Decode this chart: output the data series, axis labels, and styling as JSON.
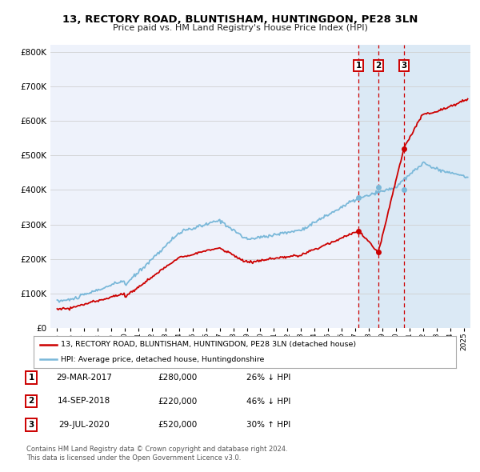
{
  "title": "13, RECTORY ROAD, BLUNTISHAM, HUNTINGDON, PE28 3LN",
  "subtitle": "Price paid vs. HM Land Registry's House Price Index (HPI)",
  "legend_house": "13, RECTORY ROAD, BLUNTISHAM, HUNTINGDON, PE28 3LN (detached house)",
  "legend_hpi": "HPI: Average price, detached house, Huntingdonshire",
  "footer1": "Contains HM Land Registry data © Crown copyright and database right 2024.",
  "footer2": "This data is licensed under the Open Government Licence v3.0.",
  "transactions": [
    {
      "num": 1,
      "date": "29-MAR-2017",
      "price": "£280,000",
      "pct": "26%",
      "dir": "↓",
      "year": 2017.25
    },
    {
      "num": 2,
      "date": "14-SEP-2018",
      "price": "£220,000",
      "pct": "46%",
      "dir": "↓",
      "year": 2018.71
    },
    {
      "num": 3,
      "date": "29-JUL-2020",
      "price": "£520,000",
      "pct": "30%",
      "dir": "↑",
      "year": 2020.58
    }
  ],
  "sale_prices": [
    280000,
    220000,
    520000
  ],
  "hpi_at_sale": [
    378378,
    407407,
    400000
  ],
  "hpi_color": "#7ab8d9",
  "price_color": "#cc0000",
  "bg_color": "#ffffff",
  "plot_bg": "#eef2fb",
  "grid_color": "#d0d0d0",
  "highlight_bg": "#d8e8f5",
  "ylim": [
    0,
    820000
  ],
  "yticks": [
    0,
    100000,
    200000,
    300000,
    400000,
    500000,
    600000,
    700000,
    800000
  ],
  "xlim_start": 1994.5,
  "xlim_end": 2025.5,
  "xticks": [
    1995,
    1996,
    1997,
    1998,
    1999,
    2000,
    2001,
    2002,
    2003,
    2004,
    2005,
    2006,
    2007,
    2008,
    2009,
    2010,
    2011,
    2012,
    2013,
    2014,
    2015,
    2016,
    2017,
    2018,
    2019,
    2020,
    2021,
    2022,
    2023,
    2024,
    2025
  ]
}
